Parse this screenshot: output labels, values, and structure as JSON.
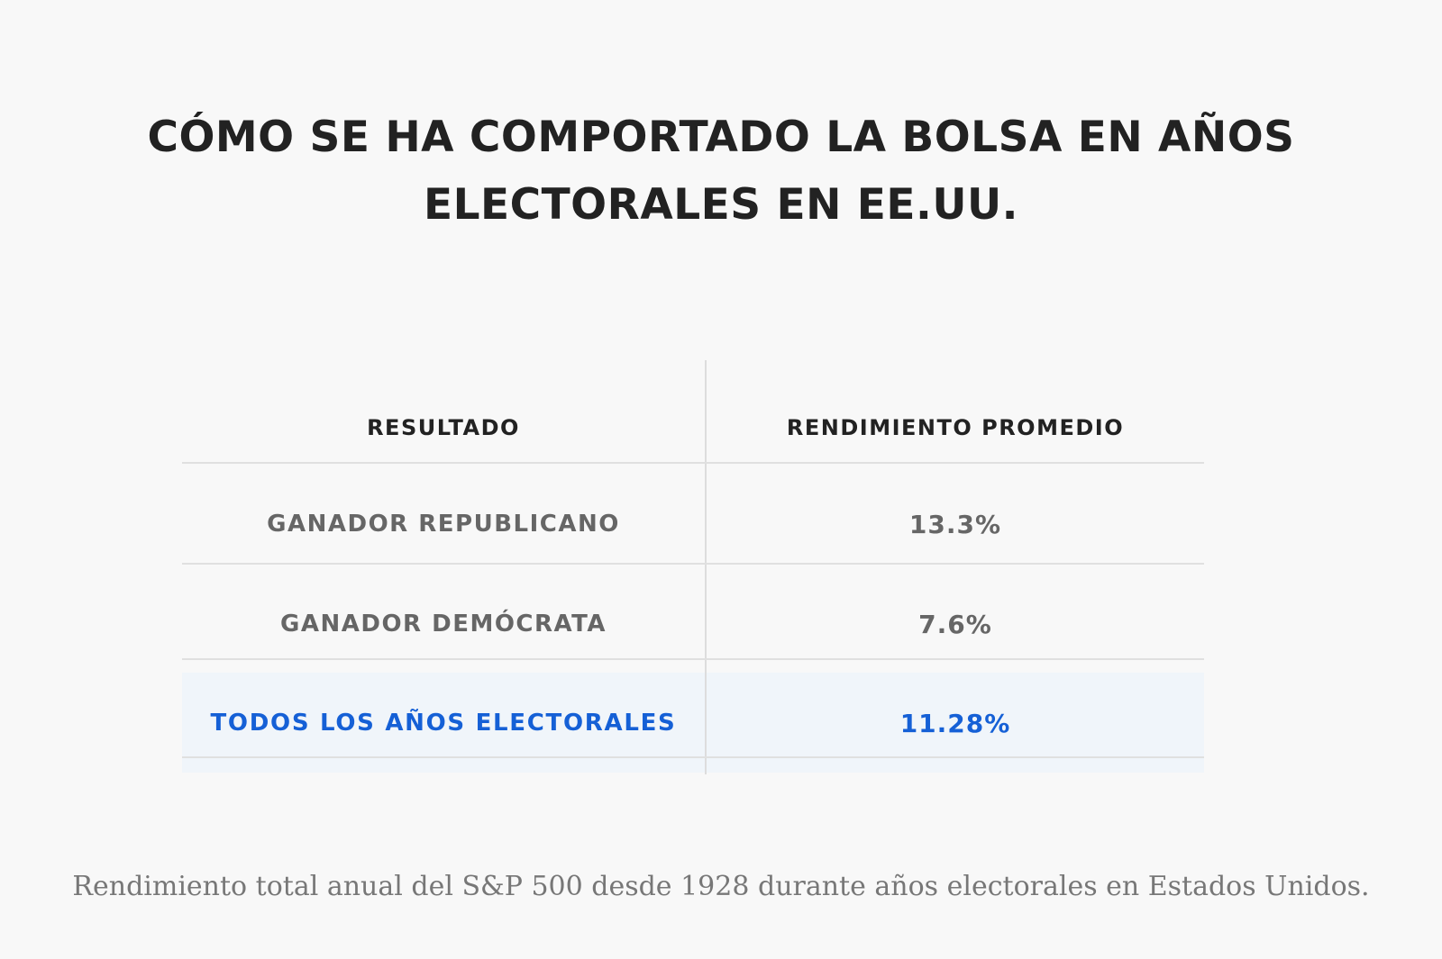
{
  "title": {
    "line1": "CÓMO SE HA COMPORTADO LA BOLSA EN AÑOS",
    "line2": "ELECTORALES EN EE.UU."
  },
  "table": {
    "headers": [
      "RESULTADO",
      "RENDIMIENTO PROMEDIO"
    ],
    "rows": [
      {
        "label": "GANADOR REPUBLICANO",
        "value": "13.3%"
      },
      {
        "label": "GANADOR DEMÓCRATA",
        "value": "7.6%"
      },
      {
        "label": "TODOS LOS AÑOS ELECTORALES",
        "value": "11.28%"
      }
    ],
    "highlight_color": "#1560d6"
  },
  "caption": "Rendimiento total anual del S&P 500 desde 1928 durante años electorales en Estados Unidos.",
  "chart_data": {
    "type": "table",
    "title": "CÓMO SE HA COMPORTADO LA BOLSA EN AÑOS ELECTORALES EN EE.UU.",
    "columns": [
      "RESULTADO",
      "RENDIMIENTO PROMEDIO"
    ],
    "categories": [
      "GANADOR REPUBLICANO",
      "GANADOR DEMÓCRATA",
      "TODOS LOS AÑOS ELECTORALES"
    ],
    "values": [
      13.3,
      7.6,
      11.28
    ]
  }
}
